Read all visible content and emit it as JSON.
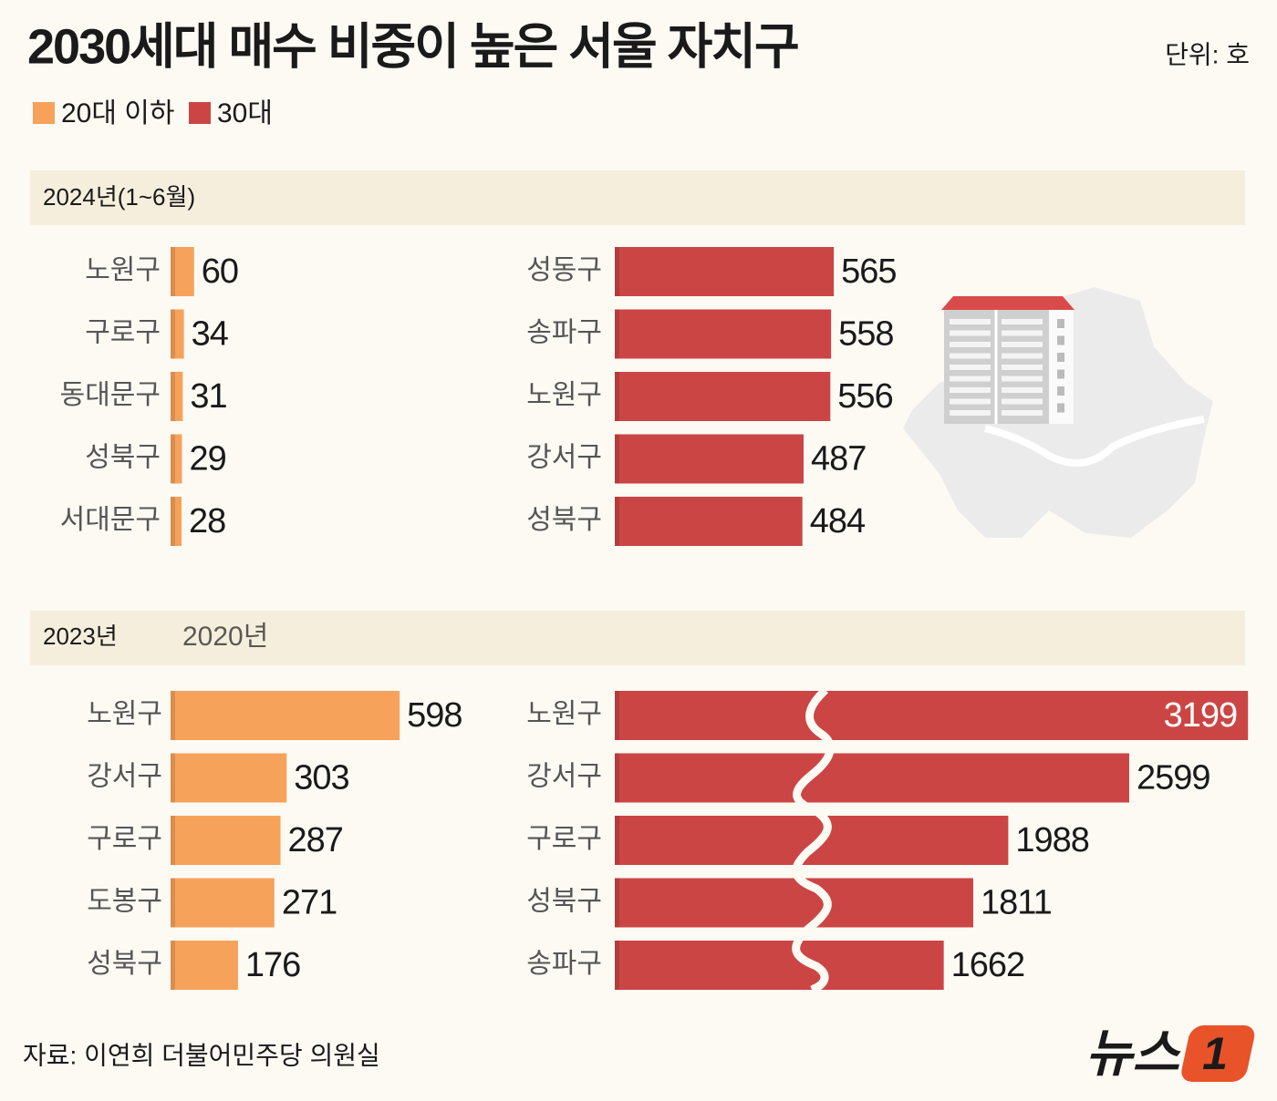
{
  "title": "2030세대 매수 비중이 높은 서울 자치구",
  "unit": "단위: 호",
  "legend": [
    {
      "name": "20대 이하",
      "color": "#f7a25b"
    },
    {
      "name": "30대",
      "color": "#cc4545"
    }
  ],
  "sections": [
    {
      "label": "2024년(1~6월)"
    },
    {
      "label": "2023년",
      "watermark": "2020년"
    }
  ],
  "chart_data": [
    {
      "type": "bar",
      "orientation": "horizontal",
      "series_name": "20대 이하",
      "color": "#f7a25b",
      "categories": [
        "노원구",
        "구로구",
        "동대문구",
        "성북구",
        "서대문구"
      ],
      "values": [
        60,
        34,
        31,
        29,
        28
      ]
    },
    {
      "type": "bar",
      "orientation": "horizontal",
      "series_name": "30대",
      "color": "#cc4545",
      "categories": [
        "성동구",
        "송파구",
        "노원구",
        "강서구",
        "성북구"
      ],
      "values": [
        565,
        558,
        556,
        487,
        484
      ]
    },
    {
      "type": "bar",
      "orientation": "horizontal",
      "series_name": "20대 이하",
      "color": "#f7a25b",
      "categories": [
        "노원구",
        "강서구",
        "구로구",
        "도봉구",
        "성북구"
      ],
      "values": [
        598,
        303,
        287,
        271,
        176
      ]
    },
    {
      "type": "bar",
      "orientation": "horizontal",
      "series_name": "30대",
      "color": "#cc4545",
      "axis_break": true,
      "categories": [
        "노원구",
        "강서구",
        "구로구",
        "성북구",
        "송파구"
      ],
      "values": [
        3199,
        2599,
        1988,
        1811,
        1662
      ]
    }
  ],
  "source": "자료: 이연희 더불어민주당 의원실",
  "logo": {
    "text": "뉴스",
    "mark": "1"
  }
}
